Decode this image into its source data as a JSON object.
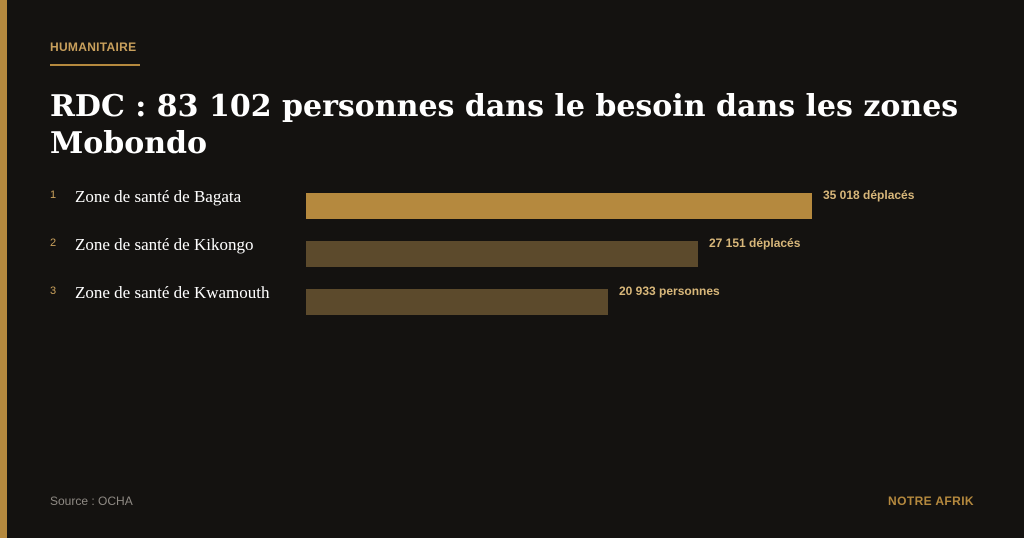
{
  "header": {
    "category": "HUMANITAIRE",
    "title": "RDC : 83 102 personnes dans le besoin dans les zones Mobondo"
  },
  "chart_data": {
    "type": "bar",
    "orientation": "horizontal",
    "categories": [
      "Zone de santé de Bagata",
      "Zone de santé de Kikongo",
      "Zone de santé de Kwamouth"
    ],
    "values": [
      35018,
      27151,
      20933
    ],
    "ranks": [
      "1",
      "2",
      "3"
    ],
    "value_labels": [
      "35 018 déplacés",
      "27 151 déplacés",
      "20 933 personnes"
    ],
    "colors": [
      "#b5893e",
      "#5c4a2c",
      "#5c4a2c"
    ],
    "title": "RDC : 83 102 personnes dans le besoin dans les zones Mobondo",
    "xlim": [
      0,
      35018
    ],
    "grid": false,
    "legend": "none"
  },
  "footer": {
    "source": "Source : OCHA",
    "brand": "NOTRE AFRIK"
  },
  "colors": {
    "background": "#141210",
    "accent": "#b5893e",
    "bar_secondary": "#5c4a2c"
  }
}
